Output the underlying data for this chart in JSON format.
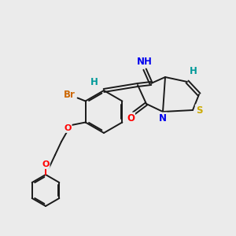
{
  "bg_color": "#ebebeb",
  "bond_color": "#1a1a1a",
  "atom_colors": {
    "Br": "#cc6600",
    "O": "#ff0000",
    "N": "#0000ee",
    "S": "#ccaa00",
    "H": "#009999",
    "C": "#1a1a1a"
  },
  "figsize": [
    3.0,
    3.0
  ],
  "dpi": 100
}
